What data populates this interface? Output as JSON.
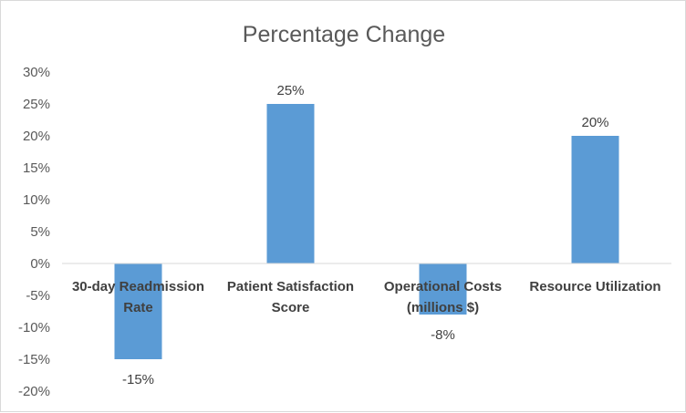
{
  "chart_data": {
    "type": "bar",
    "title": "Percentage Change",
    "categories": [
      [
        "30-day Readmission",
        "Rate"
      ],
      [
        "Patient Satisfaction",
        "Score"
      ],
      [
        "Operational Costs",
        "(millions $)"
      ],
      [
        "Resource Utilization"
      ]
    ],
    "values": [
      -15,
      25,
      -8,
      20
    ],
    "data_labels": [
      "-15%",
      "25%",
      "-8%",
      "20%"
    ],
    "y_ticks": [
      "30%",
      "25%",
      "20%",
      "15%",
      "10%",
      "5%",
      "0%",
      "-5%",
      "-10%",
      "-15%",
      "-20%"
    ],
    "ylim": [
      -20,
      30
    ],
    "grid": false,
    "legend": "none",
    "bar_color": "#5b9bd5",
    "text_color": "#595959"
  }
}
